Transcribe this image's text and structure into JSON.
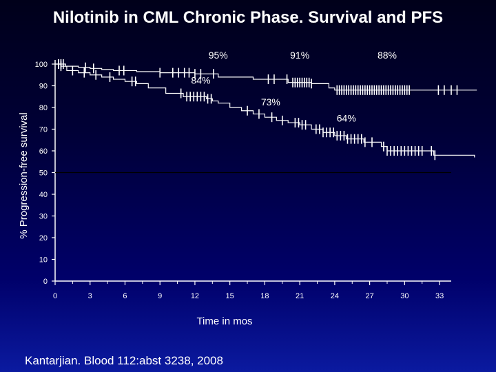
{
  "slide": {
    "title": "Nilotinib in CML Chronic Phase. Survival and PFS",
    "source": "Kantarjian. Blood 112:abst 3238, 2008"
  },
  "chart_data": {
    "type": "line",
    "title": "Nilotinib in CML Chronic Phase. Survival and PFS",
    "xlabel": "Time in mos",
    "ylabel": "% Progression-free survival",
    "xlim": [
      0,
      34
    ],
    "ylim": [
      0,
      100
    ],
    "x_ticks": [
      0,
      3,
      6,
      9,
      12,
      15,
      18,
      21,
      24,
      27,
      30,
      33
    ],
    "y_ticks": [
      0,
      10,
      20,
      30,
      40,
      50,
      60,
      70,
      80,
      90,
      100
    ],
    "grid": false,
    "reference_line_y": 50,
    "series": [
      {
        "points": [
          [
            0,
            100
          ],
          [
            0.8,
            100
          ],
          [
            0.9,
            99
          ],
          [
            2,
            98.5
          ],
          [
            3,
            98
          ],
          [
            4,
            97.5
          ],
          [
            5,
            97
          ],
          [
            7,
            96.5
          ],
          [
            9,
            96
          ],
          [
            12,
            95.5
          ],
          [
            14,
            94
          ],
          [
            17,
            93
          ],
          [
            20,
            91.5
          ],
          [
            22,
            91
          ],
          [
            23.5,
            89
          ],
          [
            24,
            88
          ],
          [
            30,
            88
          ],
          [
            36.2,
            88
          ]
        ],
        "censor_marks": [
          0.3,
          0.5,
          0.7,
          2.6,
          3.3,
          5.5,
          5.9,
          9,
          10.1,
          10.6,
          11.1,
          11.5,
          12,
          12.5,
          13.6,
          18.3,
          18.8,
          19.9,
          20.4,
          20.6,
          20.8,
          21.0,
          21.2,
          21.4,
          21.6,
          21.8,
          22.0,
          24.2,
          24.4,
          24.6,
          24.8,
          25.0,
          25.2,
          25.4,
          25.6,
          25.8,
          26.0,
          26.2,
          26.4,
          26.6,
          26.8,
          27.0,
          27.2,
          27.4,
          27.6,
          27.8,
          28.0,
          28.2,
          28.4,
          28.6,
          28.8,
          29.0,
          29.2,
          29.4,
          29.6,
          29.8,
          30.0,
          30.2,
          30.4,
          32.9,
          33.4,
          34.0,
          34.5
        ]
      },
      {
        "points": [
          [
            0,
            100
          ],
          [
            0.5,
            99
          ],
          [
            1,
            97
          ],
          [
            2,
            96
          ],
          [
            3,
            95
          ],
          [
            4,
            94
          ],
          [
            5,
            93
          ],
          [
            6,
            92
          ],
          [
            7,
            91
          ],
          [
            8,
            89
          ],
          [
            9.5,
            86.5
          ],
          [
            11,
            85
          ],
          [
            13,
            84
          ],
          [
            13.5,
            83
          ],
          [
            14,
            82
          ],
          [
            15,
            80
          ],
          [
            16,
            78.5
          ],
          [
            17,
            77
          ],
          [
            18,
            75.5
          ],
          [
            19,
            74
          ],
          [
            20,
            73
          ],
          [
            21,
            72
          ],
          [
            22,
            70
          ],
          [
            23,
            68.5
          ],
          [
            24,
            67
          ],
          [
            25,
            65.5
          ],
          [
            26.5,
            64
          ],
          [
            28,
            62
          ],
          [
            28.5,
            60
          ],
          [
            32.5,
            58
          ],
          [
            36,
            57
          ]
        ],
        "censor_marks": [
          0.3,
          0.5,
          1.5,
          2.5,
          3.5,
          4.7,
          6.6,
          6.9,
          10.8,
          11.3,
          11.6,
          11.9,
          12.2,
          12.5,
          12.8,
          13.1,
          13.4,
          16.5,
          17.5,
          18.6,
          19.5,
          20.6,
          20.9,
          21.2,
          21.5,
          22.4,
          22.7,
          23.0,
          23.3,
          23.6,
          23.9,
          24.2,
          24.5,
          24.8,
          25.1,
          25.4,
          25.7,
          26.0,
          26.3,
          26.6,
          27.2,
          28.2,
          28.5,
          28.8,
          29.1,
          29.4,
          29.7,
          30.0,
          30.3,
          30.6,
          30.9,
          31.2,
          31.5,
          32.3,
          32.6
        ]
      }
    ],
    "annotations": [
      {
        "text": "95%",
        "x": 14,
        "y": 102.5
      },
      {
        "text": "91%",
        "x": 21,
        "y": 102.5
      },
      {
        "text": "88%",
        "x": 28.5,
        "y": 102.5
      },
      {
        "text": "84%",
        "x": 12.5,
        "y": 91
      },
      {
        "text": "73%",
        "x": 18.5,
        "y": 81
      },
      {
        "text": "64%",
        "x": 25,
        "y": 73.5
      }
    ],
    "colors": {
      "survival": "#ffffff",
      "pfs": "#ffffff",
      "reference": "#000000",
      "text": "#ffffff"
    }
  }
}
